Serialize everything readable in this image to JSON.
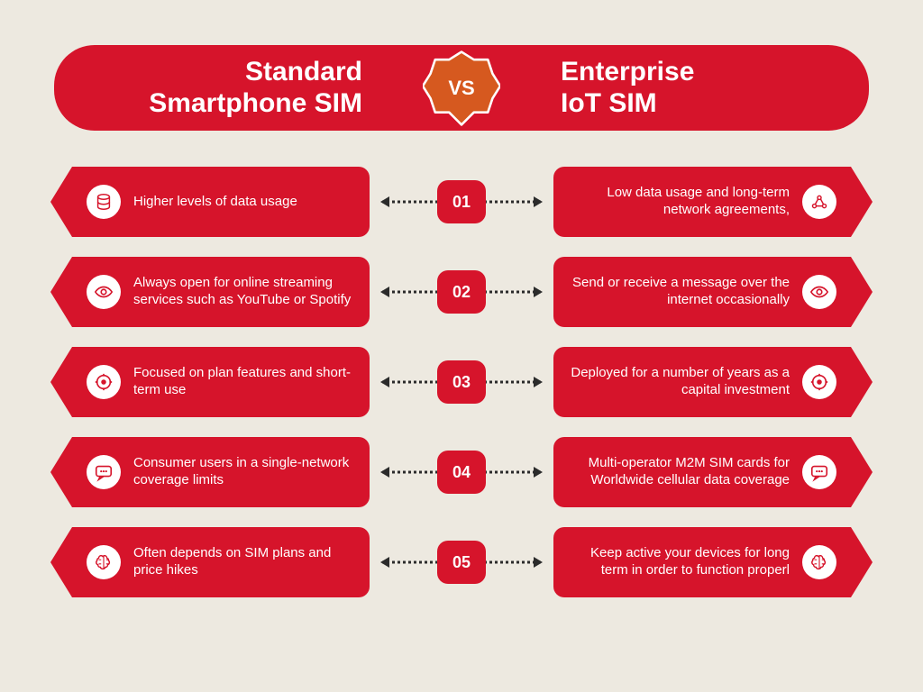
{
  "colors": {
    "background": "#ede9e0",
    "primary": "#d6142b",
    "vs_badge": "#d6591f",
    "text_light": "#ffffff",
    "connector": "#2b2b2b"
  },
  "header": {
    "left_line1": "Standard",
    "left_line2": "Smartphone SIM",
    "vs": "VS",
    "right_line1": "Enterprise",
    "right_line2": "IoT SIM"
  },
  "rows": [
    {
      "num": "01",
      "left_icon": "database",
      "left_text": "Higher levels of data usage",
      "right_icon": "network",
      "right_text": "Low data usage and long-term network agreements,"
    },
    {
      "num": "02",
      "left_icon": "eye",
      "left_text": "Always open for online streaming services such as YouTube or Spotify",
      "right_icon": "eye",
      "right_text": "Send or receive a message over the internet occasionally"
    },
    {
      "num": "03",
      "left_icon": "target",
      "left_text": "Focused on plan features and short-term use",
      "right_icon": "target",
      "right_text": "Deployed for a number of years as a capital investment"
    },
    {
      "num": "04",
      "left_icon": "message",
      "left_text": "Consumer users in a single-network coverage limits",
      "right_icon": "message",
      "right_text": "Multi-operator M2M SIM cards for Worldwide cellular data coverage"
    },
    {
      "num": "05",
      "left_icon": "brain",
      "left_text": "Often depends on SIM plans and price hikes",
      "right_icon": "brain",
      "right_text": "Keep active your devices for long term in order to function properl"
    }
  ]
}
